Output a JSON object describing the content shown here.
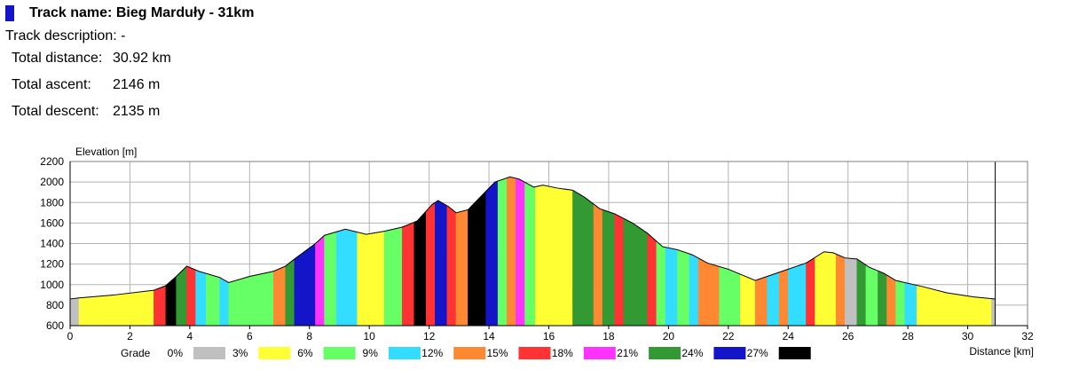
{
  "track": {
    "title": "Track name: Bieg Marduły - 31km",
    "description": "Track description: -",
    "stats": [
      {
        "label": "Total distance:",
        "value": "30.92 km"
      },
      {
        "label": "Total ascent:",
        "value": "2146 m"
      },
      {
        "label": "Total descent:",
        "value": "2135 m"
      }
    ]
  },
  "chart_data": {
    "type": "area",
    "xlabel": "Distance [km]",
    "ylabel": "Elevation [m]",
    "xlim": [
      0,
      32
    ],
    "ylim": [
      600,
      2200
    ],
    "xticks": [
      0,
      2,
      4,
      6,
      8,
      10,
      12,
      14,
      16,
      18,
      20,
      22,
      24,
      26,
      28,
      30,
      32
    ],
    "yticks": [
      600,
      800,
      1000,
      1200,
      1400,
      1600,
      1800,
      2000,
      2200
    ],
    "grid": true,
    "track_end_km": 30.92,
    "legend": {
      "title": "Grade",
      "items": [
        {
          "label": "0%",
          "color": "#c0c0c0"
        },
        {
          "label": "3%",
          "color": "#ffff33"
        },
        {
          "label": "6%",
          "color": "#66ff66"
        },
        {
          "label": "9%",
          "color": "#33ddff"
        },
        {
          "label": "12%",
          "color": "#ff8833"
        },
        {
          "label": "15%",
          "color": "#ff3333"
        },
        {
          "label": "18%",
          "color": "#ff33ff"
        },
        {
          "label": "21%",
          "color": "#339933"
        },
        {
          "label": "24%",
          "color": "#1414c8"
        },
        {
          "label": "27%",
          "color": "#000000"
        }
      ]
    },
    "profile": [
      [
        0,
        860
      ],
      [
        0.3,
        870
      ],
      [
        1.5,
        900
      ],
      [
        2.8,
        945
      ],
      [
        3.2,
        990
      ],
      [
        3.55,
        1080
      ],
      [
        3.9,
        1180
      ],
      [
        4.3,
        1130
      ],
      [
        5.0,
        1070
      ],
      [
        5.3,
        1020
      ],
      [
        6.0,
        1080
      ],
      [
        6.8,
        1130
      ],
      [
        7.2,
        1180
      ],
      [
        7.5,
        1250
      ],
      [
        8.2,
        1400
      ],
      [
        8.5,
        1480
      ],
      [
        9.2,
        1540
      ],
      [
        9.9,
        1490
      ],
      [
        10.5,
        1520
      ],
      [
        11.1,
        1560
      ],
      [
        11.6,
        1620
      ],
      [
        12.1,
        1780
      ],
      [
        12.3,
        1820
      ],
      [
        12.65,
        1760
      ],
      [
        12.9,
        1700
      ],
      [
        13.3,
        1730
      ],
      [
        13.8,
        1880
      ],
      [
        14.2,
        2000
      ],
      [
        14.7,
        2050
      ],
      [
        15.0,
        2030
      ],
      [
        15.5,
        1950
      ],
      [
        15.8,
        1970
      ],
      [
        16.3,
        1940
      ],
      [
        16.8,
        1920
      ],
      [
        17.2,
        1850
      ],
      [
        17.7,
        1740
      ],
      [
        18.2,
        1690
      ],
      [
        18.8,
        1600
      ],
      [
        19.3,
        1500
      ],
      [
        19.8,
        1370
      ],
      [
        20.3,
        1340
      ],
      [
        20.8,
        1290
      ],
      [
        21.3,
        1210
      ],
      [
        22.0,
        1150
      ],
      [
        22.9,
        1040
      ],
      [
        23.3,
        1080
      ],
      [
        24.0,
        1150
      ],
      [
        24.6,
        1210
      ],
      [
        25.2,
        1320
      ],
      [
        25.5,
        1310
      ],
      [
        25.9,
        1260
      ],
      [
        26.3,
        1250
      ],
      [
        26.7,
        1170
      ],
      [
        27.2,
        1110
      ],
      [
        27.6,
        1040
      ],
      [
        28.5,
        980
      ],
      [
        29.3,
        920
      ],
      [
        30.2,
        880
      ],
      [
        30.92,
        860
      ]
    ],
    "segments": [
      {
        "from": 0.0,
        "to": 0.3,
        "color": "#c0c0c0"
      },
      {
        "from": 0.3,
        "to": 2.8,
        "color": "#ffff33"
      },
      {
        "from": 2.8,
        "to": 3.2,
        "color": "#ff3333"
      },
      {
        "from": 3.2,
        "to": 3.55,
        "color": "#000000"
      },
      {
        "from": 3.55,
        "to": 3.9,
        "color": "#339933"
      },
      {
        "from": 3.9,
        "to": 4.2,
        "color": "#ff3333"
      },
      {
        "from": 4.2,
        "to": 4.55,
        "color": "#33ddff"
      },
      {
        "from": 4.55,
        "to": 5.0,
        "color": "#66ff66"
      },
      {
        "from": 5.0,
        "to": 5.3,
        "color": "#33ddff"
      },
      {
        "from": 5.3,
        "to": 6.8,
        "color": "#66ff66"
      },
      {
        "from": 6.8,
        "to": 7.2,
        "color": "#ff8833"
      },
      {
        "from": 7.2,
        "to": 7.5,
        "color": "#339933"
      },
      {
        "from": 7.5,
        "to": 8.2,
        "color": "#1414c8"
      },
      {
        "from": 8.2,
        "to": 8.5,
        "color": "#ff33ff"
      },
      {
        "from": 8.5,
        "to": 8.9,
        "color": "#66ff66"
      },
      {
        "from": 8.9,
        "to": 9.6,
        "color": "#33ddff"
      },
      {
        "from": 9.6,
        "to": 10.5,
        "color": "#ffff33"
      },
      {
        "from": 10.5,
        "to": 11.1,
        "color": "#66ff66"
      },
      {
        "from": 11.1,
        "to": 11.5,
        "color": "#ff3333"
      },
      {
        "from": 11.5,
        "to": 11.9,
        "color": "#000000"
      },
      {
        "from": 11.9,
        "to": 12.2,
        "color": "#ff3333"
      },
      {
        "from": 12.2,
        "to": 12.6,
        "color": "#1414c8"
      },
      {
        "from": 12.6,
        "to": 12.9,
        "color": "#ff3333"
      },
      {
        "from": 12.9,
        "to": 13.3,
        "color": "#ff8833"
      },
      {
        "from": 13.3,
        "to": 13.9,
        "color": "#000000"
      },
      {
        "from": 13.9,
        "to": 14.3,
        "color": "#1414c8"
      },
      {
        "from": 14.3,
        "to": 14.6,
        "color": "#66ff66"
      },
      {
        "from": 14.6,
        "to": 14.9,
        "color": "#ff8833"
      },
      {
        "from": 14.9,
        "to": 15.2,
        "color": "#ff33ff"
      },
      {
        "from": 15.2,
        "to": 15.55,
        "color": "#66ff66"
      },
      {
        "from": 15.55,
        "to": 16.8,
        "color": "#ffff33"
      },
      {
        "from": 16.8,
        "to": 17.5,
        "color": "#339933"
      },
      {
        "from": 17.5,
        "to": 17.8,
        "color": "#ff8833"
      },
      {
        "from": 17.8,
        "to": 18.2,
        "color": "#339933"
      },
      {
        "from": 18.2,
        "to": 18.5,
        "color": "#ff3333"
      },
      {
        "from": 18.5,
        "to": 19.3,
        "color": "#339933"
      },
      {
        "from": 19.3,
        "to": 19.6,
        "color": "#ff3333"
      },
      {
        "from": 19.6,
        "to": 19.9,
        "color": "#66ff66"
      },
      {
        "from": 19.9,
        "to": 20.3,
        "color": "#33ddff"
      },
      {
        "from": 20.3,
        "to": 20.7,
        "color": "#66ff66"
      },
      {
        "from": 20.7,
        "to": 21.0,
        "color": "#33ddff"
      },
      {
        "from": 21.0,
        "to": 21.7,
        "color": "#ff8833"
      },
      {
        "from": 21.7,
        "to": 22.4,
        "color": "#66ff66"
      },
      {
        "from": 22.4,
        "to": 22.9,
        "color": "#ffff33"
      },
      {
        "from": 22.9,
        "to": 23.3,
        "color": "#ff8833"
      },
      {
        "from": 23.3,
        "to": 23.7,
        "color": "#33ddff"
      },
      {
        "from": 23.7,
        "to": 24.0,
        "color": "#ff8833"
      },
      {
        "from": 24.0,
        "to": 24.6,
        "color": "#33ddff"
      },
      {
        "from": 24.6,
        "to": 24.9,
        "color": "#ff3333"
      },
      {
        "from": 24.9,
        "to": 25.6,
        "color": "#ffff33"
      },
      {
        "from": 25.6,
        "to": 25.9,
        "color": "#ff8833"
      },
      {
        "from": 25.9,
        "to": 26.3,
        "color": "#c0c0c0"
      },
      {
        "from": 26.3,
        "to": 26.6,
        "color": "#339933"
      },
      {
        "from": 26.6,
        "to": 27.0,
        "color": "#66ff66"
      },
      {
        "from": 27.0,
        "to": 27.3,
        "color": "#339933"
      },
      {
        "from": 27.3,
        "to": 27.6,
        "color": "#ff8833"
      },
      {
        "from": 27.6,
        "to": 27.9,
        "color": "#66ff66"
      },
      {
        "from": 27.9,
        "to": 28.3,
        "color": "#33ddff"
      },
      {
        "from": 28.3,
        "to": 30.8,
        "color": "#ffff33"
      },
      {
        "from": 30.8,
        "to": 30.92,
        "color": "#c0c0c0"
      }
    ]
  }
}
